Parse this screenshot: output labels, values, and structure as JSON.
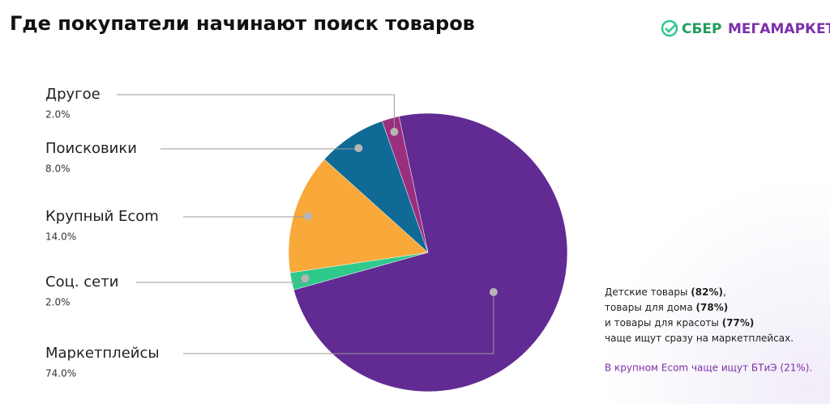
{
  "brand": [
    "СБЕР",
    "МЕГАМАРКЕТ"
  ],
  "chart_data": {
    "type": "pie",
    "title": "Где покупатели начинают поиск товаров",
    "categories": [
      "Маркетплейсы",
      "Соц. сети",
      "Крупный Ecom",
      "Поисковики",
      "Другое"
    ],
    "values": [
      74,
      2,
      14,
      8,
      2
    ],
    "value_labels": [
      "74.0%",
      "2.0%",
      "14.0%",
      "8.0%",
      "2.0%"
    ],
    "colors": [
      "#622a93",
      "#2ec98b",
      "#f8a93a",
      "#106a96",
      "#9a2f80"
    ],
    "annotation": [
      [
        {
          "text": "Детские товары "
        },
        {
          "text": "(82%)",
          "bold": true
        },
        {
          "text": ","
        }
      ],
      [
        {
          "text": "товары для дома "
        },
        {
          "text": "(78%)",
          "bold": true
        }
      ],
      [
        {
          "text": "и товары для красоты "
        },
        {
          "text": "(77%)",
          "bold": true
        }
      ],
      [
        {
          "text": "чаще ищут сразу на маркетплейсах."
        }
      ]
    ],
    "highlight": "В крупном Ecom чаще ищут БТиЭ (21%)."
  }
}
